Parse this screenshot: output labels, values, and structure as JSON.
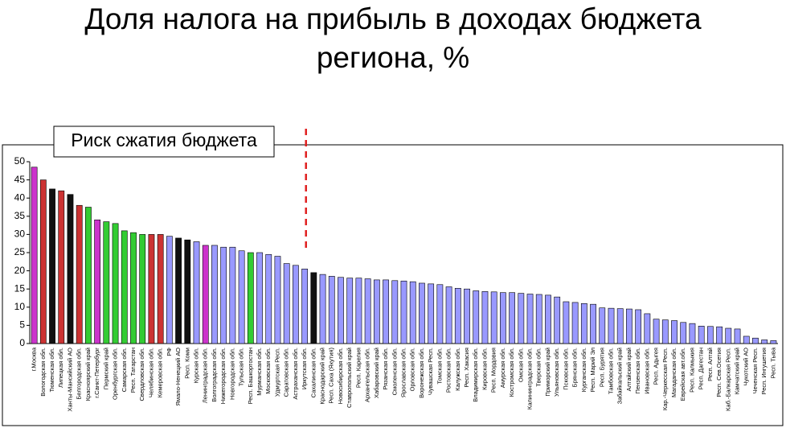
{
  "chart_data": {
    "type": "bar",
    "title": "Доля налога на прибыль в доходах бюджета региона, %",
    "annotation": "Риск сжатия бюджета",
    "categories": [
      "г.Москва",
      "Вологодская обл.",
      "Тюменская обл.",
      "Липецкая обл.",
      "Ханты-Мансийский АО",
      "Белгородская обл.",
      "Красноярский край",
      "г.Санкт-Петербург",
      "Пермский край",
      "Оренбургская обл.",
      "Самарская обл.",
      "Респ. Татарстан",
      "Свердловская обл.",
      "Челябинская обл.",
      "Кемеровская обл.",
      "РФ",
      "Ямало-Ненецкий АО",
      "Респ. Коми",
      "Курская обл.",
      "Ленинградская обл.",
      "Волгоградская обл.",
      "Нижегородская обл.",
      "Новгородская обл.",
      "Тульская обл.",
      "Респ. Башкортостан",
      "Мурманская обл.",
      "Московская обл.",
      "Удмуртская Респ.",
      "Саратовская обл.",
      "Астраханская обл.",
      "Иркутская обл.",
      "Сахалинская обл.",
      "Краснодарский край",
      "Респ. Саха (Якутия)",
      "Новосибирская обл.",
      "Ставропольский край",
      "Респ. Карелия",
      "Архангельская обл.",
      "Хабаровский край",
      "Рязанская обл.",
      "Смоленская обл.",
      "Ярославская обл.",
      "Орловская обл.",
      "Воронежская обл.",
      "Чувашская Респ.",
      "Томская обл.",
      "Ростовская обл.",
      "Калужская обл.",
      "Респ. Хакасия",
      "Владимирская обл.",
      "Кировская обл.",
      "Респ. Мордовия",
      "Амурская обл.",
      "Костромская обл.",
      "Омская обл.",
      "Калининградская обл.",
      "Тверская обл.",
      "Приморский край",
      "Ульяновская обл.",
      "Псковская обл.",
      "Брянская обл.",
      "Курганская обл.",
      "Респ. Марий Эл",
      "Респ. Бурятия",
      "Тамбовская обл.",
      "Забайкальский край",
      "Алтайский край",
      "Пензенская обл.",
      "Ивановская обл.",
      "Респ. Адыгея",
      "Кар.-Черкесская Респ.",
      "Магаданская обл.",
      "Еврейская авт.обл.",
      "Респ. Калмыкия",
      "Респ. Дагестан",
      "Респ. Алтай",
      "Респ. Сев.Осетия",
      "Каб.-Балкарская Респ.",
      "Камчатский край",
      "Чукотский АО",
      "Чеченская Респ.",
      "Респ. Ингушетия",
      "Респ. Тыва"
    ],
    "values": [
      48.5,
      45,
      42.5,
      42,
      41,
      38,
      37.5,
      34,
      33.5,
      33,
      31,
      30.5,
      30,
      30,
      30,
      29.5,
      29,
      28.5,
      28,
      27,
      27,
      26.5,
      26.5,
      25.5,
      25,
      25,
      24.5,
      24,
      22,
      21.5,
      20.5,
      19.5,
      19,
      18.5,
      18.2,
      18,
      18,
      17.8,
      17.5,
      17.5,
      17.3,
      17.2,
      17,
      16.6,
      16.4,
      16.2,
      15.6,
      15.2,
      15,
      14.5,
      14.3,
      14.2,
      14,
      14,
      13.8,
      13.6,
      13.5,
      13.3,
      12.8,
      11.5,
      11.3,
      11,
      10.8,
      9.8,
      9.7,
      9.6,
      9.5,
      9.3,
      8.2,
      6.7,
      6.5,
      6.3,
      5.8,
      5.5,
      4.8,
      4.7,
      4.6,
      4.2,
      4,
      2,
      1.5,
      1,
      0.8
    ],
    "colors": [
      "#cc33cc",
      "#cc3333",
      "#111111",
      "#cc3333",
      "#111111",
      "#cc3333",
      "#33cc33",
      "#cc33cc",
      "#33cc33",
      "#33cc33",
      "#33cc33",
      "#33cc33",
      "#33cc33",
      "#cc3333",
      "#cc3333",
      "#9999ff",
      "#111111",
      "#111111",
      "#9999ff",
      "#cc33cc",
      "#9999ff",
      "#9999ff",
      "#9999ff",
      "#9999ff",
      "#33cc33",
      "#9999ff",
      "#9999ff",
      "#9999ff",
      "#9999ff",
      "#9999ff",
      "#9999ff",
      "#111111",
      "#9999ff",
      "#9999ff",
      "#9999ff",
      "#9999ff",
      "#9999ff",
      "#9999ff",
      "#9999ff",
      "#9999ff",
      "#9999ff",
      "#9999ff",
      "#9999ff",
      "#9999ff",
      "#9999ff",
      "#9999ff",
      "#9999ff",
      "#9999ff",
      "#9999ff",
      "#9999ff",
      "#9999ff",
      "#9999ff",
      "#9999ff",
      "#9999ff",
      "#9999ff",
      "#9999ff",
      "#9999ff",
      "#9999ff",
      "#9999ff",
      "#9999ff",
      "#9999ff",
      "#9999ff",
      "#9999ff",
      "#9999ff",
      "#9999ff",
      "#9999ff",
      "#9999ff",
      "#9999ff",
      "#9999ff",
      "#9999ff",
      "#9999ff",
      "#9999ff",
      "#9999ff",
      "#9999ff",
      "#9999ff",
      "#9999ff",
      "#9999ff",
      "#9999ff",
      "#9999ff",
      "#9999ff",
      "#9999ff",
      "#9999ff",
      "#9999ff"
    ],
    "ylim": [
      0,
      50
    ],
    "yticks": [
      0,
      5,
      10,
      15,
      20,
      25,
      30,
      35,
      40,
      45,
      50
    ],
    "grid": false
  }
}
